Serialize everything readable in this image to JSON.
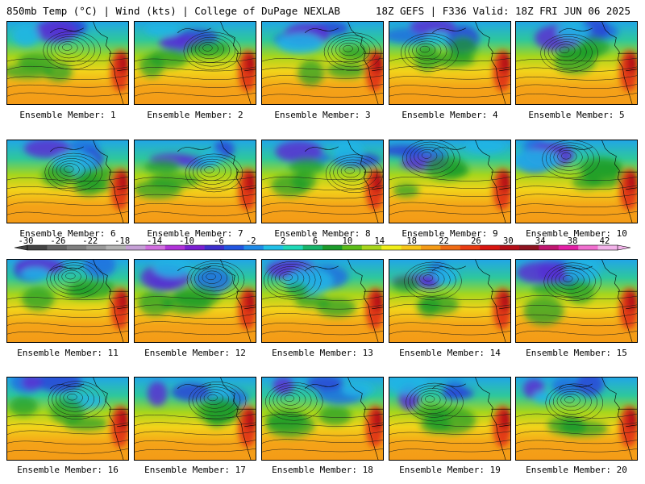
{
  "header": {
    "left": "850mb Temp (°C) | Wind (kts) | College of DuPage NEXLAB",
    "right": "18Z GEFS | F336 Valid: 18Z FRI JUN 06 2025"
  },
  "colorbar": {
    "min": -30,
    "max": 42,
    "step": 4,
    "tick_labels": [
      "-30",
      "-26",
      "-22",
      "-18",
      "-14",
      "-10",
      "-6",
      "-2",
      "2",
      "6",
      "10",
      "14",
      "18",
      "22",
      "26",
      "30",
      "34",
      "38",
      "42"
    ],
    "colors": [
      "#444444",
      "#666666",
      "#7f7f7f",
      "#999999",
      "#b3b3b3",
      "#c6a0d6",
      "#d16fe0",
      "#b033d9",
      "#7a1fd1",
      "#3d2fcc",
      "#2255e0",
      "#1f8be8",
      "#21c0e8",
      "#1fd9b8",
      "#17b56a",
      "#1b9b2a",
      "#5cbd19",
      "#a8d61c",
      "#f0ee1a",
      "#f7c61a",
      "#f49b17",
      "#ef6b14",
      "#e93b12",
      "#d81510",
      "#b50e18",
      "#8e1320",
      "#bf1670",
      "#e31fa6",
      "#f06fcf",
      "#f3b3ea"
    ]
  },
  "panels": [
    {
      "label": "Ensemble Member: 1",
      "bbox_desc": "NE Pacific / North America"
    },
    {
      "label": "Ensemble Member: 2"
    },
    {
      "label": "Ensemble Member: 3"
    },
    {
      "label": "Ensemble Member: 4"
    },
    {
      "label": "Ensemble Member: 5"
    },
    {
      "label": "Ensemble Member: 6"
    },
    {
      "label": "Ensemble Member: 7"
    },
    {
      "label": "Ensemble Member: 8"
    },
    {
      "label": "Ensemble Member: 9"
    },
    {
      "label": "Ensemble Member: 10"
    },
    {
      "label": "Ensemble Member: 11"
    },
    {
      "label": "Ensemble Member: 12"
    },
    {
      "label": "Ensemble Member: 13"
    },
    {
      "label": "Ensemble Member: 14"
    },
    {
      "label": "Ensemble Member: 15"
    },
    {
      "label": "Ensemble Member: 16"
    },
    {
      "label": "Ensemble Member: 17"
    },
    {
      "label": "Ensemble Member: 18"
    },
    {
      "label": "Ensemble Member: 19"
    },
    {
      "label": "Ensemble Member: 20"
    }
  ]
}
